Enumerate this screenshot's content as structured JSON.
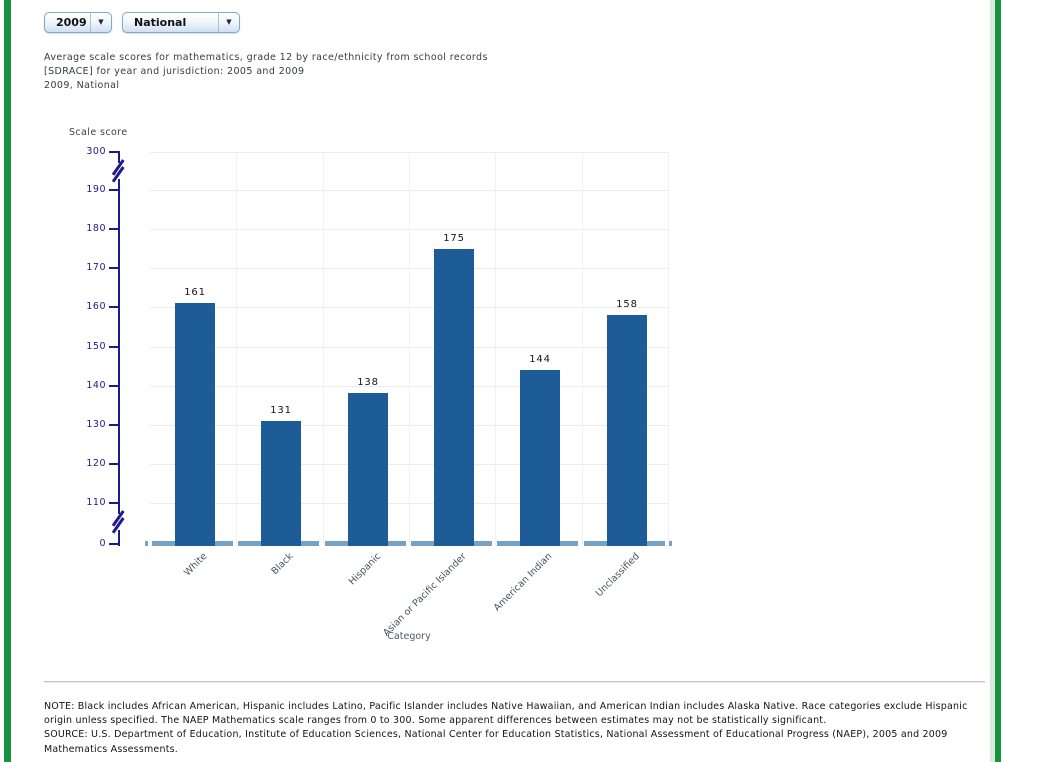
{
  "controls": {
    "year_value": "2009",
    "jurisdiction_value": "National"
  },
  "header": {
    "line1": "Average scale scores for mathematics, grade 12 by race/ethnicity from school records",
    "line2": "[SDRACE] for year and jurisdiction: 2005 and 2009",
    "line3": "2009, National"
  },
  "chart_data": {
    "type": "bar",
    "title": "Average scale scores for mathematics, grade 12 by race/ethnicity from school records [SDRACE] for year and jurisdiction: 2005 and 2009",
    "subtitle": "2009, National",
    "categories": [
      "White",
      "Black",
      "Hispanic",
      "Asian or Pacific Islander",
      "American Indian",
      "Unclassified"
    ],
    "values": [
      161,
      131,
      138,
      175,
      144,
      158
    ],
    "xlabel": "Category",
    "ylabel": "Scale score",
    "yticks": [
      300,
      190,
      180,
      170,
      160,
      150,
      140,
      130,
      120,
      110,
      0
    ],
    "ylim": [
      0,
      300
    ],
    "axis_breaks": [
      [
        190,
        300
      ],
      [
        0,
        110
      ]
    ],
    "grid": true,
    "legend": "none",
    "bar_color": "#1d5c96",
    "baseline_color": "#76a3c5",
    "axis_color": "#1c1c87"
  },
  "footer": {
    "note": "NOTE: Black includes African American, Hispanic includes Latino, Pacific Islander includes Native Hawaiian, and American Indian includes Alaska Native. Race categories exclude Hispanic origin unless specified. The NAEP Mathematics scale ranges from 0 to 300. Some apparent differences between estimates may not be statistically significant.",
    "source": "SOURCE: U.S. Department of Education, Institute of Education Sciences, National Center for Education Statistics, National Assessment of Educational Progress (NAEP), 2005 and 2009 Mathematics Assessments."
  },
  "colors": {
    "edge_green": "#169240",
    "bar_blue": "#1d5c96",
    "baseline_blue": "#76a3c5",
    "axis_navy": "#1c1c87"
  }
}
